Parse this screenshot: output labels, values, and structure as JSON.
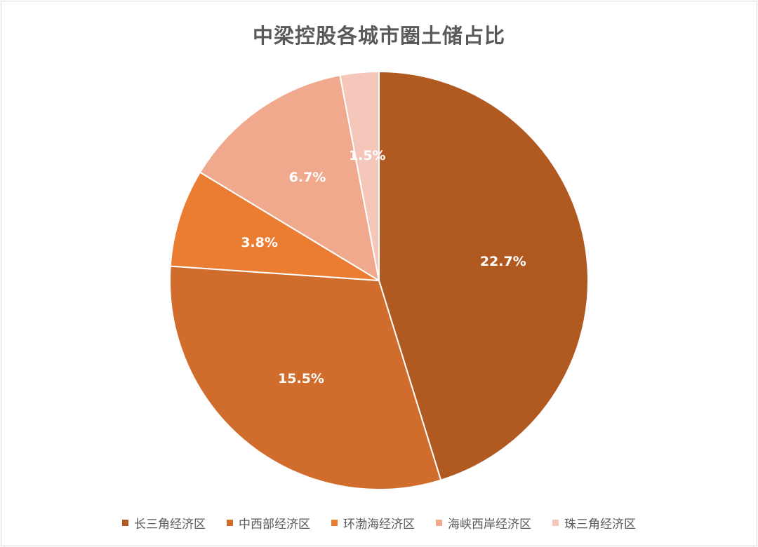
{
  "chart_data": {
    "type": "pie",
    "title": "中梁控股各城市圈土储占比",
    "slices": [
      {
        "name": "长三角经济区",
        "value": 22.7,
        "label": "22.7%",
        "color": "#B05A22"
      },
      {
        "name": "中西部经济区",
        "value": 15.5,
        "label": "15.5%",
        "color": "#D06D2C"
      },
      {
        "name": "环渤海经济区",
        "value": 3.8,
        "label": "3.8%",
        "color": "#EB7D33"
      },
      {
        "name": "海峡西岸经济区",
        "value": 6.7,
        "label": "6.7%",
        "color": "#F0A98C"
      },
      {
        "name": "珠三角经济区",
        "value": 1.5,
        "label": "1.5%",
        "color": "#F4C7BA"
      }
    ],
    "legend_position": "bottom",
    "start_angle": "12 o'clock",
    "direction": "clockwise"
  }
}
